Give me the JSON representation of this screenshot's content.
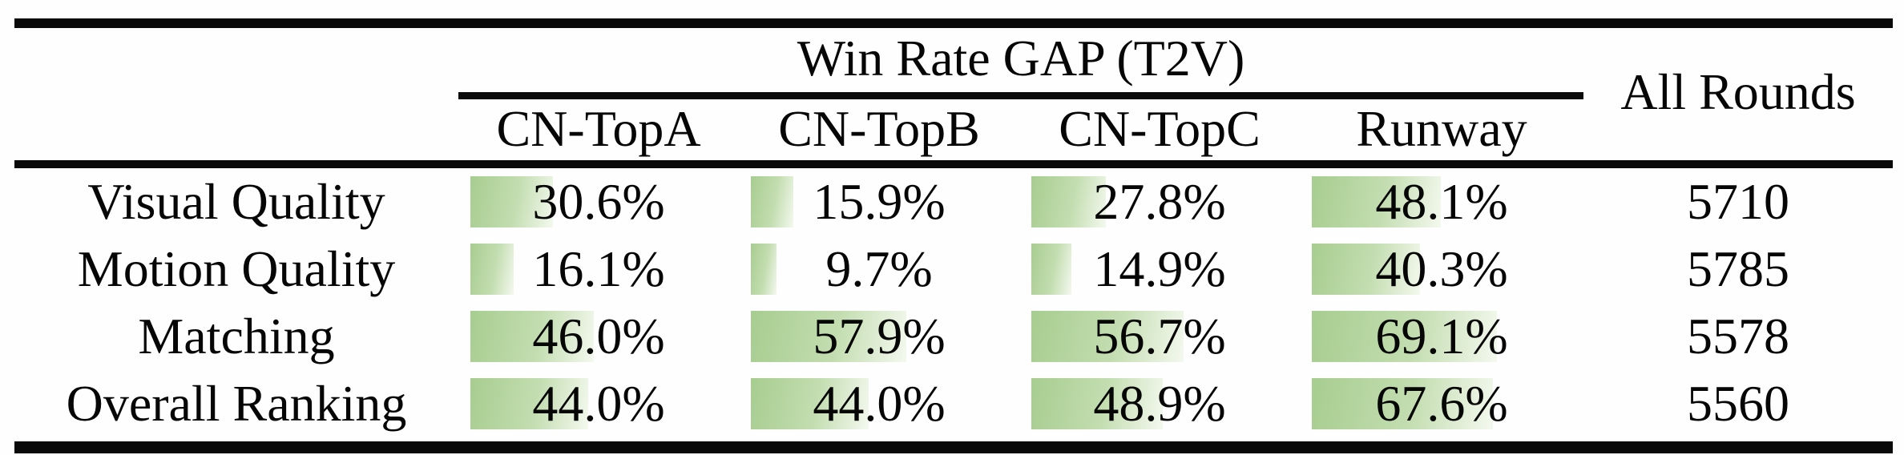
{
  "table": {
    "title": "Win Rate GAP (T2V)",
    "all_rounds_label": "All Rounds",
    "columns": [
      "CN-TopA",
      "CN-TopB",
      "CN-TopC",
      "Runway"
    ],
    "rows": [
      {
        "label": "Visual Quality",
        "values": [
          30.6,
          15.9,
          27.8,
          48.1
        ],
        "all_rounds": "5710"
      },
      {
        "label": "Motion Quality",
        "values": [
          16.1,
          9.7,
          14.9,
          40.3
        ],
        "all_rounds": "5785"
      },
      {
        "label": "Matching",
        "values": [
          46.0,
          57.9,
          56.7,
          69.1
        ],
        "all_rounds": "5578"
      },
      {
        "label": "Overall Ranking",
        "values": [
          44.0,
          44.0,
          48.9,
          67.6
        ],
        "all_rounds": "5560"
      }
    ],
    "colors": {
      "bar_green": "#a7cd90",
      "bar_green_mid": "#c3ddb0",
      "bar_fade": "#f4f9ef",
      "rule_black": "#0a0a0a"
    }
  },
  "chart_data": {
    "type": "table",
    "title": "Win Rate GAP (T2V)",
    "columns": [
      "CN-TopA",
      "CN-TopB",
      "CN-TopC",
      "Runway",
      "All Rounds"
    ],
    "row_labels": [
      "Visual Quality",
      "Motion Quality",
      "Matching",
      "Overall Ranking"
    ],
    "series": [
      {
        "name": "Visual Quality",
        "win_rate_gap_percent": [
          30.6,
          15.9,
          27.8,
          48.1
        ],
        "all_rounds": 5710
      },
      {
        "name": "Motion Quality",
        "win_rate_gap_percent": [
          16.1,
          9.7,
          14.9,
          40.3
        ],
        "all_rounds": 5785
      },
      {
        "name": "Matching",
        "win_rate_gap_percent": [
          46.0,
          57.9,
          56.7,
          69.1
        ],
        "all_rounds": 5578
      },
      {
        "name": "Overall Ranking",
        "win_rate_gap_percent": [
          44.0,
          44.0,
          48.9,
          67.6
        ],
        "all_rounds": 5560
      }
    ],
    "notes": "Each percentage cell has a green data bar whose width is proportional to the value"
  }
}
